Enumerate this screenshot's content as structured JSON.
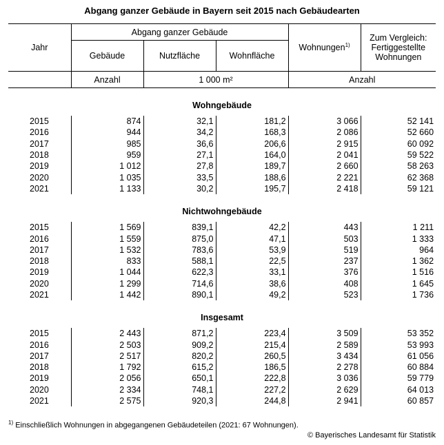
{
  "title": "Abgang ganzer Gebäude in Bayern seit 2015 nach Gebäudearten",
  "header": {
    "jahr": "Jahr",
    "group": "Abgang ganzer Gebäude",
    "gebaeude": "Gebäude",
    "nutzflaeche": "Nutzfläche",
    "wohnflaeche": "Wohnfläche",
    "wohnungen": "Wohnungen",
    "wohnungen_sup": "1)",
    "vergleich": "Zum Vergleich: Fertiggestellte Wohnungen",
    "unit_anzahl": "Anzahl",
    "unit_m2": "1 000 m²",
    "unit_anzahl2": "Anzahl"
  },
  "sections": [
    {
      "title": "Wohngebäude",
      "rows": [
        [
          "2015",
          "874",
          "32,1",
          "181,2",
          "3 066",
          "52 141"
        ],
        [
          "2016",
          "944",
          "34,2",
          "168,3",
          "2 086",
          "52 660"
        ],
        [
          "2017",
          "985",
          "36,6",
          "206,6",
          "2 915",
          "60 092"
        ],
        [
          "2018",
          "959",
          "27,1",
          "164,0",
          "2 041",
          "59 522"
        ],
        [
          "2019",
          "1 012",
          "27,8",
          "189,7",
          "2 660",
          "58 263"
        ],
        [
          "2020",
          "1 035",
          "33,5",
          "188,6",
          "2 221",
          "62 368"
        ],
        [
          "2021",
          "1 133",
          "30,2",
          "195,7",
          "2 418",
          "59 121"
        ]
      ]
    },
    {
      "title": "Nichtwohngebäude",
      "rows": [
        [
          "2015",
          "1 569",
          "839,1",
          "42,2",
          "443",
          "1 211"
        ],
        [
          "2016",
          "1 559",
          "875,0",
          "47,1",
          "503",
          "1 333"
        ],
        [
          "2017",
          "1 532",
          "783,6",
          "53,9",
          "519",
          "964"
        ],
        [
          "2018",
          "833",
          "588,1",
          "22,5",
          "237",
          "1 362"
        ],
        [
          "2019",
          "1 044",
          "622,3",
          "33,1",
          "376",
          "1 516"
        ],
        [
          "2020",
          "1 299",
          "714,6",
          "38,6",
          "408",
          "1 645"
        ],
        [
          "2021",
          "1 442",
          "890,1",
          "49,2",
          "523",
          "1 736"
        ]
      ]
    },
    {
      "title": "Insgesamt",
      "rows": [
        [
          "2015",
          "2 443",
          "871,2",
          "223,4",
          "3 509",
          "53 352"
        ],
        [
          "2016",
          "2 503",
          "909,2",
          "215,4",
          "2 589",
          "53 993"
        ],
        [
          "2017",
          "2 517",
          "820,2",
          "260,5",
          "3 434",
          "61 056"
        ],
        [
          "2018",
          "1 792",
          "615,2",
          "186,5",
          "2 278",
          "60 884"
        ],
        [
          "2019",
          "2 056",
          "650,1",
          "222,8",
          "3 036",
          "59 779"
        ],
        [
          "2020",
          "2 334",
          "748,1",
          "227,2",
          "2 629",
          "64 013"
        ],
        [
          "2021",
          "2 575",
          "920,3",
          "244,8",
          "2 941",
          "60 857"
        ]
      ]
    }
  ],
  "footnote_mark": "1)",
  "footnote": "Einschließlich Wohnungen in abgegangenen Gebäudeteilen (2021: 67 Wohnungen).",
  "copyright": "© Bayerisches Landesamt für Statistik"
}
